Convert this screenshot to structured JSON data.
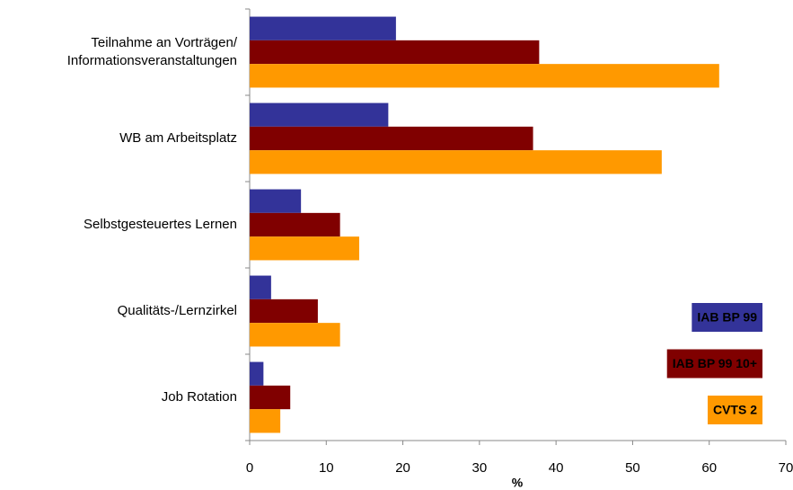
{
  "chart_data": {
    "type": "hbar",
    "categories": [
      "Teilnahme an Vorträgen/\nInformationsveranstaltungen",
      "WB am Arbeitsplatz",
      "Selbstgesteuertes Lernen",
      "Qualitäts-/Lernzirkel",
      "Job Rotation"
    ],
    "series": [
      {
        "name": "IAB BP 99",
        "color": "#333399",
        "values": [
          19.1,
          18.1,
          6.7,
          2.8,
          1.8
        ]
      },
      {
        "name": "IAB BP 99 10+",
        "color": "#800000",
        "values": [
          37.8,
          37.0,
          11.8,
          8.9,
          5.3
        ]
      },
      {
        "name": "CVTS 2",
        "color": "#ff9900",
        "values": [
          61.3,
          53.8,
          14.3,
          11.8,
          4.0
        ]
      }
    ],
    "x_label": "%",
    "xlim": [
      0,
      70
    ],
    "xticks": [
      0,
      10,
      20,
      30,
      40,
      50,
      60,
      70
    ],
    "grid": true
  }
}
